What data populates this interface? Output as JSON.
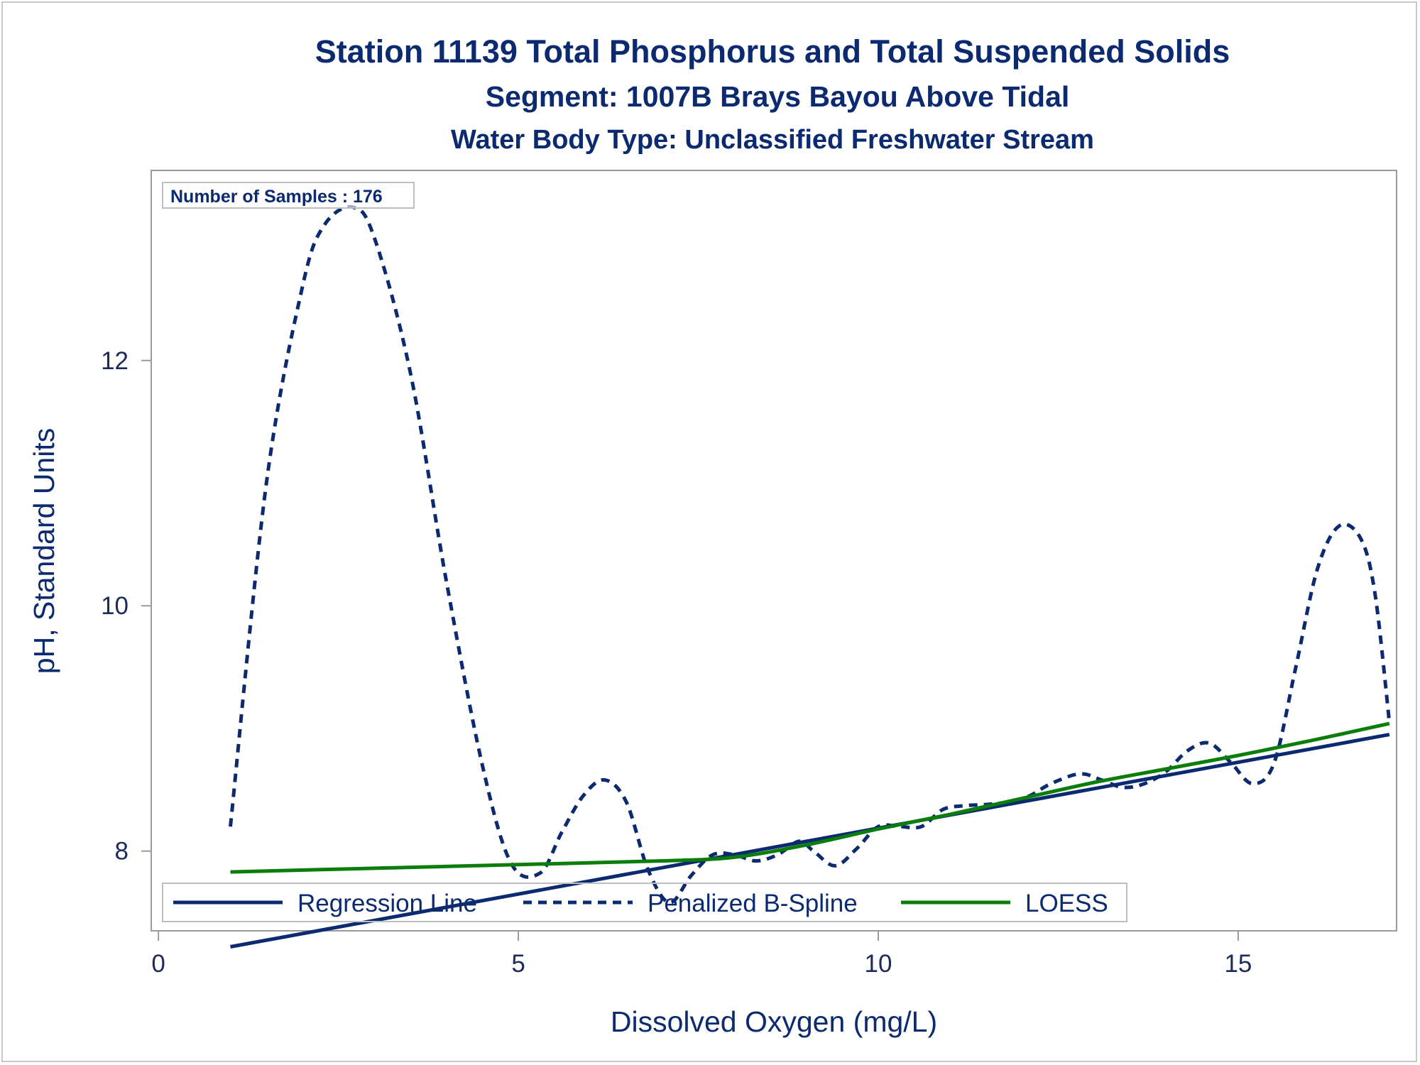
{
  "chart_data": {
    "type": "line",
    "title": "Station 11139  Total Phosphorus and Total Suspended Solids",
    "subtitle": "Segment: 1007B  Brays Bayou Above Tidal",
    "subtitle2": "Water Body Type: Unclassified Freshwater Stream",
    "xlabel": "Dissolved Oxygen (mg/L)",
    "ylabel": "pH, Standard Units",
    "xlim": [
      -0.1,
      17.2
    ],
    "ylim": [
      7.35,
      13.55
    ],
    "x_ticks": [
      0,
      5,
      10,
      15
    ],
    "y_ticks": [
      8,
      10,
      12
    ],
    "grid": false,
    "legend_position": "bottom-inside",
    "inset": "Number of Samples : 176",
    "series": [
      {
        "name": "Regression Line",
        "style": "solid",
        "color": "#0b2a6f",
        "x": [
          1.0,
          17.1
        ],
        "y": [
          7.22,
          8.95
        ]
      },
      {
        "name": "Penalized B-Spline",
        "style": "dashed",
        "color": "#0b2a6f",
        "x": [
          1.0,
          1.5,
          2.0,
          2.3,
          2.7,
          3.0,
          3.5,
          4.0,
          4.5,
          4.9,
          5.3,
          5.6,
          5.9,
          6.2,
          6.5,
          6.8,
          7.1,
          7.4,
          7.7,
          8.0,
          8.3,
          8.6,
          8.9,
          9.1,
          9.4,
          9.7,
          10.0,
          10.3,
          10.6,
          10.9,
          11.2,
          11.5,
          11.8,
          12.1,
          12.4,
          12.8,
          13.1,
          13.4,
          13.7,
          14.0,
          14.3,
          14.6,
          14.9,
          15.2,
          15.5,
          15.8,
          16.1,
          16.4,
          16.7,
          16.9,
          17.1
        ],
        "y": [
          8.2,
          11.0,
          12.6,
          13.1,
          13.25,
          13.0,
          11.9,
          10.2,
          8.7,
          7.9,
          7.82,
          8.15,
          8.45,
          8.58,
          8.4,
          7.85,
          7.58,
          7.8,
          7.97,
          7.97,
          7.92,
          7.97,
          8.08,
          8.0,
          7.88,
          8.02,
          8.2,
          8.2,
          8.2,
          8.34,
          8.37,
          8.38,
          8.4,
          8.45,
          8.55,
          8.63,
          8.58,
          8.52,
          8.55,
          8.65,
          8.82,
          8.88,
          8.72,
          8.55,
          8.72,
          9.5,
          10.3,
          10.65,
          10.55,
          10.1,
          9.05
        ]
      },
      {
        "name": "LOESS",
        "style": "solid",
        "color": "#0a7d0a",
        "x": [
          1.0,
          3.0,
          5.0,
          7.0,
          8.0,
          9.0,
          10.0,
          11.0,
          12.0,
          13.0,
          14.0,
          15.0,
          16.0,
          17.1
        ],
        "y": [
          7.83,
          7.86,
          7.89,
          7.92,
          7.95,
          8.05,
          8.18,
          8.3,
          8.43,
          8.56,
          8.67,
          8.78,
          8.9,
          9.04
        ]
      }
    ]
  }
}
